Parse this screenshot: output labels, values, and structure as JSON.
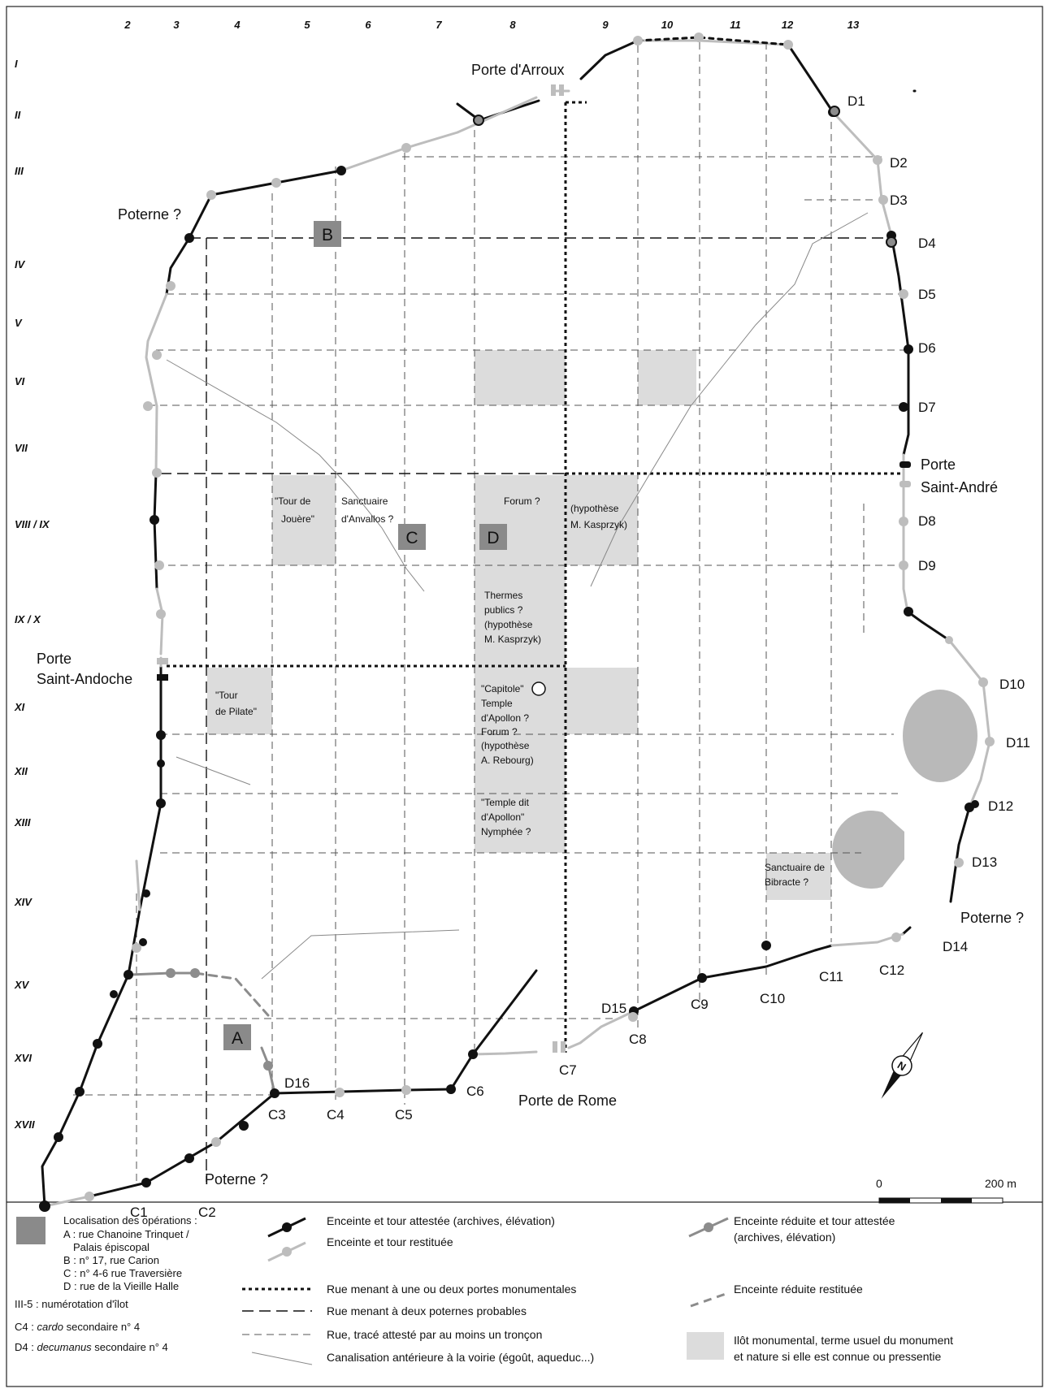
{
  "map": {
    "col_labels": [
      "2",
      "3",
      "4",
      "5",
      "6",
      "7",
      "8",
      "9",
      "10",
      "11",
      "12",
      "13"
    ],
    "row_labels": [
      "I",
      "II",
      "III",
      "IV",
      "V",
      "VI",
      "VII",
      "VIII / IX",
      "IX / X",
      "XI",
      "XII",
      "XIII",
      "XIV",
      "XV",
      "XVI",
      "XVII"
    ],
    "gates": {
      "arroux": "Porte d'Arroux",
      "andre_1": "Porte",
      "andre_2": "Saint-André",
      "andoche_1": "Porte",
      "andoche_2": "Saint-Andoche",
      "rome": "Porte de Rome"
    },
    "posterns": {
      "nw": "Poterne ?",
      "e": "Poterne ?",
      "sw": "Poterne ?"
    },
    "towers": {
      "d1": "D1",
      "d2": "D2",
      "d3": "D3",
      "d4": "D4",
      "d5": "D5",
      "d6": "D6",
      "d7": "D7",
      "d8": "D8",
      "d9": "D9",
      "d10": "D10",
      "d11": "D11",
      "d12": "D12",
      "d13": "D13",
      "d14": "D14",
      "d15": "D15",
      "d16": "D16",
      "c1": "C1",
      "c2": "C2",
      "c3": "C3",
      "c4": "C4",
      "c5": "C5",
      "c6": "C6",
      "c7": "C7",
      "c8": "C8",
      "c9": "C9",
      "c10": "C10",
      "c11": "C11",
      "c12": "C12"
    },
    "operations": {
      "a": "A",
      "b": "B",
      "c": "C",
      "d": "D"
    },
    "monuments": {
      "tour_jouere": [
        "\"Tour de",
        "Jouère\""
      ],
      "sanctuaire_anvallos": [
        "Sanctuaire",
        "d'Anvallos ?"
      ],
      "forum": "Forum ?",
      "hyp_kasprzyk": [
        "(hypothèse",
        "M. Kasprzyk)"
      ],
      "thermes": [
        "Thermes",
        "publics ?",
        "(hypothèse",
        "M. Kasprzyk)"
      ],
      "tour_pilate": [
        "\"Tour",
        "de Pilate\""
      ],
      "capitole": [
        "\"Capitole\"",
        "Temple",
        "d'Apollon ?",
        "Forum ?",
        "(hypothèse",
        "A. Rebourg)"
      ],
      "temple_apollon": [
        "\"Temple dit",
        "d'Apollon\"",
        "Nymphée ?"
      ],
      "sanctuaire_bibracte": [
        "Sanctuaire de",
        "Bibracte ?"
      ]
    },
    "scale": {
      "zero": "0",
      "max": "200 m"
    },
    "north_symbol": "N"
  },
  "legend": {
    "operations_title": "Localisation des opérations :",
    "operations_items": [
      "A : rue Chanoine Trinquet /",
      "Palais épiscopal",
      "B : n° 17, rue Carion",
      "C : n° 4-6 rue Traversière",
      "D : rue de la Vieille Halle"
    ],
    "ilot_note": "III-5 : numérotation d'îlot",
    "cardo_note_prefix": "C4 : ",
    "cardo_note_italic": "cardo",
    "cardo_note_suffix": " secondaire n° 4",
    "decumanus_note_prefix": "D4 : ",
    "decumanus_note_italic": "decumanus",
    "decumanus_note_suffix": " secondaire n° 4",
    "wall_attested": "Enceinte et tour attestée (archives, élévation)",
    "wall_restituted": "Enceinte et tour restituée",
    "street_monumental": "Rue menant à une ou deux portes monumentales",
    "street_posterns": "Rue menant à deux poternes probables",
    "street_attested": "Rue, tracé attesté par au moins un tronçon",
    "canal": "Canalisation antérieure à la voirie (égoût, aqueduc...)",
    "reduced_attested": [
      "Enceinte réduite et tour attestée",
      "(archives, élévation)"
    ],
    "reduced_restituted": "Enceinte réduite restituée",
    "ilot_monumental": [
      "Ilôt monumental, terme usuel du monument",
      "et nature si elle est connue ou pressentie"
    ]
  },
  "colors": {
    "attested": "#111111",
    "restituted": "#bdbdbd",
    "reduced": "#8c8c8c",
    "monument": "#dcdcdc",
    "operation": "#8a8a8a"
  }
}
